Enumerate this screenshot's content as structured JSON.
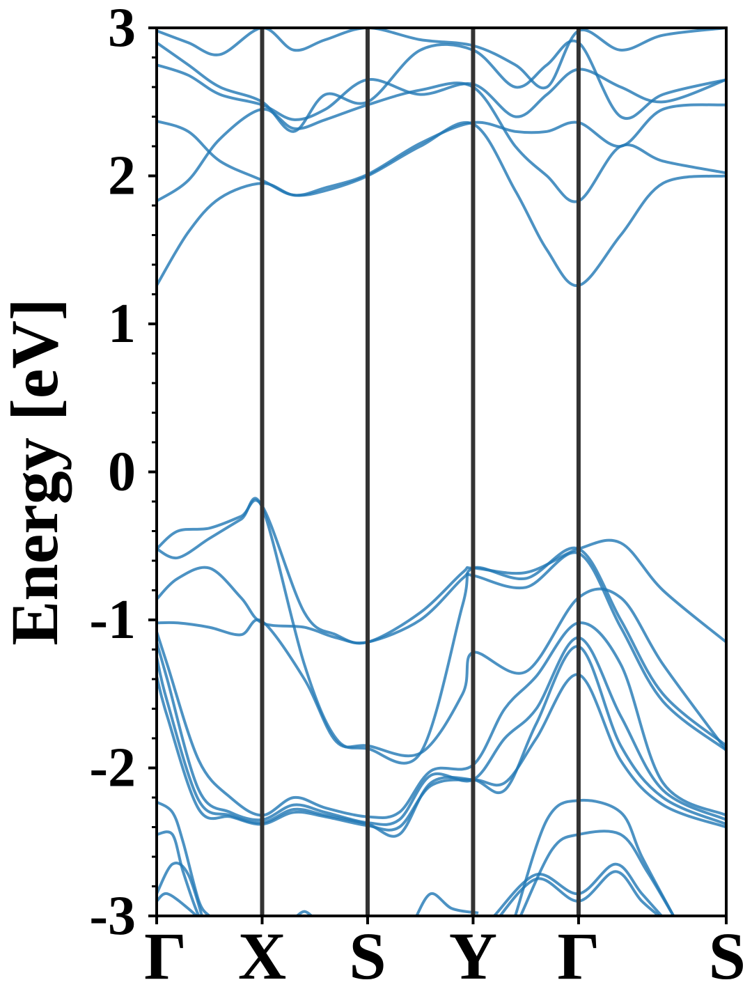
{
  "chart_data": {
    "type": "line",
    "title": "",
    "xlabel": "",
    "ylabel": "Energy [eV]",
    "ylim": [
      -3,
      3
    ],
    "yticks": [
      -3,
      -2,
      -1,
      0,
      1,
      2,
      3
    ],
    "ytick_labels": [
      "-3",
      "-2",
      "-1",
      "0",
      "1",
      "2",
      "3"
    ],
    "kpoint_positions": [
      0,
      1,
      2,
      3,
      4,
      5.4
    ],
    "kpoint_labels": [
      "Γ",
      "X",
      "S",
      "Y",
      "Γ",
      "S"
    ],
    "grid": false,
    "legend": "none",
    "band_color": "#1f77b4",
    "divider_color": "#333333",
    "series": [
      {
        "x": [
          0,
          0.3,
          0.6,
          1,
          1.3,
          1.6,
          2,
          2.5,
          3,
          3.4,
          3.7,
          4,
          4.4,
          4.8,
          5.4
        ],
        "y": [
          1.26,
          1.62,
          1.85,
          1.95,
          1.87,
          1.9,
          2.0,
          2.2,
          2.35,
          1.9,
          1.5,
          1.26,
          1.6,
          1.95,
          2.0
        ]
      },
      {
        "x": [
          0,
          0.3,
          0.6,
          1,
          1.3,
          1.6,
          2,
          2.5,
          3,
          3.4,
          3.7,
          4,
          4.4,
          4.8,
          5.4
        ],
        "y": [
          1.83,
          1.97,
          2.25,
          2.45,
          2.32,
          2.38,
          2.48,
          2.58,
          2.6,
          2.2,
          2.0,
          1.83,
          2.2,
          2.1,
          2.02
        ]
      },
      {
        "x": [
          0,
          0.3,
          0.6,
          1,
          1.3,
          1.6,
          2,
          2.5,
          3,
          3.4,
          3.7,
          4,
          4.4,
          4.8,
          5.4
        ],
        "y": [
          2.37,
          2.3,
          2.1,
          1.97,
          1.87,
          1.92,
          2.01,
          2.22,
          2.36,
          2.3,
          2.3,
          2.36,
          2.2,
          2.45,
          2.48
        ]
      },
      {
        "x": [
          0,
          0.3,
          0.6,
          1,
          1.3,
          1.6,
          2,
          2.5,
          3,
          3.4,
          3.7,
          4,
          4.4,
          4.8,
          5.4
        ],
        "y": [
          2.75,
          2.68,
          2.55,
          2.48,
          2.38,
          2.45,
          2.65,
          2.55,
          2.62,
          2.4,
          2.55,
          2.72,
          2.6,
          2.5,
          2.65
        ]
      },
      {
        "x": [
          0,
          0.3,
          0.6,
          1,
          1.3,
          1.6,
          2,
          2.5,
          3,
          3.4,
          3.7,
          4,
          4.4,
          4.8,
          5.4
        ],
        "y": [
          2.9,
          2.75,
          2.6,
          2.5,
          2.3,
          2.55,
          2.5,
          2.85,
          2.85,
          2.6,
          2.75,
          2.9,
          2.4,
          2.55,
          2.65
        ]
      },
      {
        "x": [
          0,
          0.3,
          0.6,
          1,
          1.3,
          1.6,
          2,
          2.5,
          3,
          3.4,
          3.7,
          4,
          4.4,
          4.8,
          5.4
        ],
        "y": [
          2.98,
          2.9,
          2.82,
          3.0,
          2.85,
          2.92,
          3.0,
          2.92,
          2.88,
          2.75,
          2.6,
          2.98,
          2.85,
          2.95,
          3.0
        ]
      },
      {
        "x": [
          0,
          0.2,
          0.5,
          0.8,
          1,
          1.4,
          1.7,
          2,
          2.5,
          2.9,
          3,
          3.5,
          4,
          4.4,
          4.8,
          5.4
        ],
        "y": [
          -0.52,
          -0.4,
          -0.38,
          -0.3,
          -0.23,
          -0.95,
          -1.1,
          -1.15,
          -0.95,
          -0.68,
          -0.65,
          -0.68,
          -0.52,
          -0.48,
          -0.8,
          -1.15
        ]
      },
      {
        "x": [
          0,
          0.2,
          0.5,
          0.8,
          1,
          1.4,
          1.7,
          2,
          2.5,
          2.9,
          3,
          3.5,
          4,
          4.4,
          4.8,
          5.4
        ],
        "y": [
          -0.52,
          -0.58,
          -0.45,
          -0.32,
          -0.24,
          -1.3,
          -1.8,
          -1.87,
          -1.9,
          -0.9,
          -0.65,
          -0.72,
          -0.52,
          -1.0,
          -1.5,
          -1.85
        ]
      },
      {
        "x": [
          0,
          0.2,
          0.5,
          0.8,
          1,
          1.4,
          1.7,
          2,
          2.5,
          2.9,
          3,
          3.5,
          4,
          4.4,
          4.8,
          5.4
        ],
        "y": [
          -0.86,
          -0.72,
          -0.65,
          -0.85,
          -1.02,
          -1.05,
          -1.12,
          -1.15,
          -1.0,
          -0.72,
          -0.7,
          -0.78,
          -0.55,
          -1.05,
          -1.55,
          -1.88
        ]
      },
      {
        "x": [
          0,
          0.2,
          0.5,
          0.8,
          1,
          1.4,
          1.7,
          2,
          2.5,
          2.9,
          3,
          3.5,
          4,
          4.4,
          4.8,
          5.4
        ],
        "y": [
          -1.02,
          -1.02,
          -1.05,
          -1.1,
          -1.01,
          -1.4,
          -1.82,
          -1.85,
          -1.9,
          -1.5,
          -1.22,
          -1.35,
          -0.85,
          -0.85,
          -1.3,
          -1.88
        ]
      },
      {
        "x": [
          0,
          0.1,
          0.4,
          0.7,
          1,
          1.3,
          1.6,
          2,
          2.3,
          2.6,
          3,
          3.3,
          3.6,
          4,
          4.4,
          4.8,
          5.4
        ],
        "y": [
          -1.08,
          -1.3,
          -1.95,
          -2.2,
          -2.32,
          -2.2,
          -2.27,
          -2.33,
          -2.3,
          -2.02,
          -1.98,
          -1.6,
          -1.38,
          -1.02,
          -1.3,
          -2.1,
          -2.32
        ]
      },
      {
        "x": [
          0,
          0.1,
          0.4,
          0.7,
          1,
          1.3,
          1.6,
          2,
          2.3,
          2.6,
          3,
          3.3,
          3.6,
          4,
          4.4,
          4.8,
          5.4
        ],
        "y": [
          -1.15,
          -1.4,
          -2.15,
          -2.3,
          -2.35,
          -2.25,
          -2.3,
          -2.37,
          -2.35,
          -2.05,
          -2.08,
          -1.8,
          -1.6,
          -1.12,
          -1.65,
          -2.15,
          -2.35
        ]
      },
      {
        "x": [
          0,
          0.1,
          0.4,
          0.7,
          1,
          1.3,
          1.6,
          2,
          2.3,
          2.6,
          3,
          3.3,
          3.6,
          4,
          4.4,
          4.8,
          5.4
        ],
        "y": [
          -1.25,
          -1.55,
          -2.22,
          -2.32,
          -2.37,
          -2.28,
          -2.32,
          -2.38,
          -2.45,
          -2.1,
          -2.08,
          -2.15,
          -1.7,
          -1.18,
          -1.85,
          -2.2,
          -2.38
        ]
      },
      {
        "x": [
          0,
          0.1,
          0.4,
          0.7,
          1,
          1.3,
          1.6,
          2,
          2.3,
          2.6,
          3,
          3.3,
          3.6,
          4,
          4.4,
          4.8,
          5.4
        ],
        "y": [
          -1.38,
          -1.65,
          -2.28,
          -2.33,
          -2.38,
          -2.3,
          -2.33,
          -2.39,
          -2.4,
          -2.12,
          -2.08,
          -2.1,
          -1.8,
          -1.37,
          -1.95,
          -2.25,
          -2.4
        ]
      },
      {
        "x": [
          0,
          0.15,
          0.25,
          0.4,
          0.5
        ],
        "y": [
          -2.23,
          -2.3,
          -2.5,
          -2.9,
          -3.0
        ]
      },
      {
        "x": [
          0,
          0.15,
          0.25,
          0.4,
          0.5
        ],
        "y": [
          -2.45,
          -2.45,
          -2.7,
          -3.0,
          -3.05
        ]
      },
      {
        "x": [
          0,
          0.15,
          0.3,
          0.45
        ],
        "y": [
          -2.85,
          -2.65,
          -2.72,
          -3.05
        ]
      },
      {
        "x": [
          0,
          0.1,
          0.3,
          0.45
        ],
        "y": [
          -2.9,
          -2.85,
          -2.95,
          -3.05
        ]
      },
      {
        "x": [
          3.4,
          3.7,
          4,
          4.4,
          4.6,
          4.9
        ],
        "y": [
          -3.0,
          -2.35,
          -2.22,
          -2.3,
          -2.6,
          -3.0
        ]
      },
      {
        "x": [
          3.45,
          3.75,
          4,
          4.4,
          4.65,
          4.9
        ],
        "y": [
          -3.0,
          -2.55,
          -2.45,
          -2.45,
          -2.7,
          -3.0
        ]
      },
      {
        "x": [
          3.2,
          3.6,
          4,
          4.35,
          4.6,
          4.85
        ],
        "y": [
          -3.0,
          -2.72,
          -2.85,
          -2.65,
          -2.85,
          -3.05
        ]
      },
      {
        "x": [
          3.2,
          3.6,
          4,
          4.35,
          4.6,
          4.85
        ],
        "y": [
          -3.05,
          -2.75,
          -2.9,
          -2.7,
          -2.9,
          -3.05
        ]
      },
      {
        "x": [
          1.3,
          1.4,
          1.5
        ],
        "y": [
          -3.02,
          -2.97,
          -3.02
        ]
      },
      {
        "x": [
          2.45,
          2.6,
          2.8,
          3.05
        ],
        "y": [
          -3.02,
          -2.85,
          -2.95,
          -2.98
        ]
      }
    ]
  }
}
